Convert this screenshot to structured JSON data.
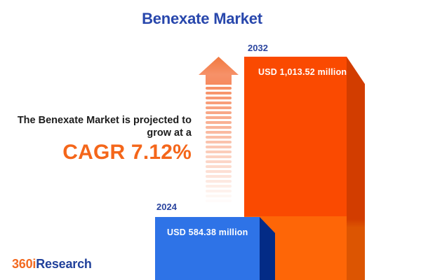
{
  "title": "Benexate Market",
  "annotation": {
    "line1": "The Benexate Market is projected to",
    "line2": "grow at a",
    "cagr": "CAGR 7.12%"
  },
  "bars": {
    "b2024": {
      "year": "2024",
      "label": "USD 584.38 million"
    },
    "b2032": {
      "year": "2032",
      "label": "USD 1,013.52 million"
    }
  },
  "logo": {
    "part1": "360i",
    "part2": "Research"
  },
  "colors": {
    "title_blue": "#2847ac",
    "year_label_blue": "#2b459f",
    "annotation_text": "#1c1c1c",
    "cagr_orange": "#f4661a",
    "bar_2024_face": "#2e73e7",
    "bar_2024_side": "#032b86",
    "bar_2032_face_top": "#fa4a01",
    "bar_2032_face_bottom": "#fe6607",
    "bar_2032_side_top": "#d23d00",
    "bar_2032_side_bottom": "#dc5502",
    "arrow_orange": "#f68a5f",
    "background": "#ffffff"
  },
  "chart_data": {
    "type": "bar",
    "title": "Benexate Market",
    "categories": [
      "2024",
      "2032"
    ],
    "values": [
      584.38,
      1013.52
    ],
    "unit": "USD million",
    "data_labels": [
      "USD 584.38 million",
      "USD 1,013.52 million"
    ],
    "cagr_percent": 7.12,
    "xlabel": "",
    "ylabel": "",
    "legend": "none",
    "grid": false,
    "style": "3d-infographic, blue bar for 2024, orange bar for 2032, fading striped growth arrow between annotation and bars"
  }
}
